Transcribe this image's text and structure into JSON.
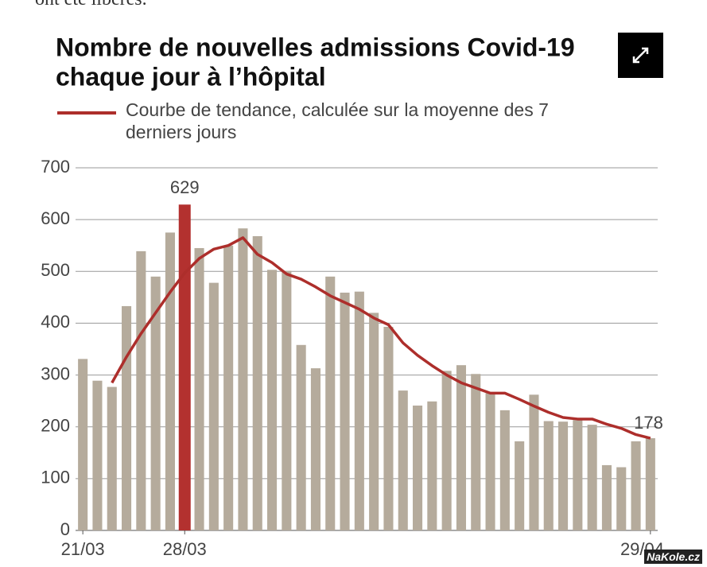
{
  "page": {
    "top_text": "ont été libérés.",
    "watermark": "NaKole.cz"
  },
  "chart_data": {
    "type": "bar",
    "title": [
      "Nombre de nouvelles admissions Covid-19",
      "chaque jour à l’hôpital"
    ],
    "categories": [
      "21/03",
      null,
      null,
      null,
      null,
      null,
      null,
      "28/03",
      null,
      null,
      null,
      null,
      null,
      null,
      null,
      null,
      null,
      null,
      null,
      null,
      null,
      null,
      null,
      null,
      null,
      null,
      null,
      null,
      null,
      null,
      null,
      null,
      null,
      null,
      null,
      null,
      null,
      null,
      null,
      "29/04"
    ],
    "series": [
      {
        "type": "bar",
        "color": "#b5ab9c",
        "colors": [
          "#b5ab9c",
          "#b5ab9c",
          "#b5ab9c",
          "#b5ab9c",
          "#b5ab9c",
          "#b5ab9c",
          "#b5ab9c",
          "#b3312f",
          "#b5ab9c",
          "#b5ab9c",
          "#b5ab9c",
          "#b5ab9c",
          "#b5ab9c",
          "#b5ab9c",
          "#b5ab9c",
          "#b5ab9c",
          "#b5ab9c",
          "#b5ab9c",
          "#b5ab9c",
          "#b5ab9c",
          "#b5ab9c",
          "#b5ab9c",
          "#b5ab9c",
          "#b5ab9c",
          "#b5ab9c",
          "#b5ab9c",
          "#b5ab9c",
          "#b5ab9c",
          "#b5ab9c",
          "#b5ab9c",
          "#b5ab9c",
          "#b5ab9c",
          "#b5ab9c",
          "#b5ab9c",
          "#b5ab9c",
          "#b5ab9c",
          "#b5ab9c",
          "#b5ab9c",
          "#b5ab9c",
          "#b5ab9c"
        ],
        "values": [
          331,
          289,
          277,
          433,
          539,
          490,
          575,
          629,
          545,
          478,
          550,
          583,
          568,
          503,
          501,
          358,
          313,
          490,
          459,
          461,
          420,
          393,
          270,
          241,
          249,
          308,
          319,
          302,
          265,
          232,
          172,
          262,
          211,
          210,
          213,
          204,
          126,
          122,
          172,
          178
        ]
      },
      {
        "type": "line",
        "name": "Courbe de tendance, calculée sur la moyenne des 7 derniers jours",
        "color": "#ad2e2b",
        "values": [
          null,
          null,
          285,
          335,
          380,
          420,
          460,
          497,
          525,
          543,
          550,
          565,
          533,
          517,
          495,
          485,
          470,
          453,
          440,
          427,
          410,
          397,
          362,
          338,
          318,
          300,
          285,
          275,
          265,
          265,
          253,
          240,
          228,
          218,
          215,
          215,
          205,
          197,
          185,
          178
        ]
      }
    ],
    "ylim": [
      0,
      700
    ],
    "yticks": [
      0,
      100,
      200,
      300,
      400,
      500,
      600,
      700
    ],
    "grid": true
  }
}
